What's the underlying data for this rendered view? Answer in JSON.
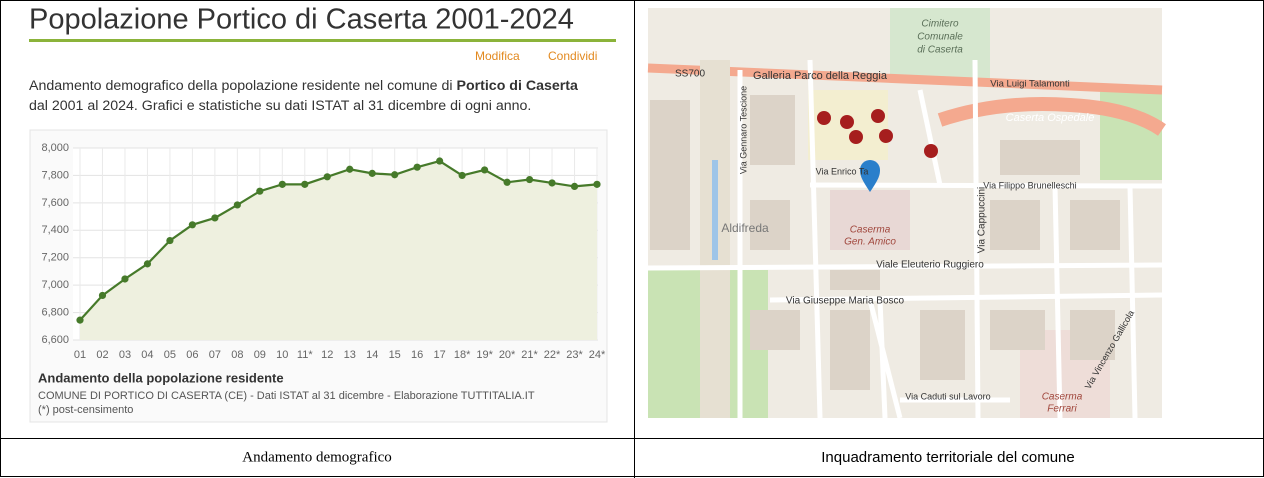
{
  "header": {
    "title": "Popolazione Portico di Caserta 2001-2024",
    "actions": [
      "Modifica",
      "Condividi"
    ]
  },
  "description": {
    "lines": [
      [
        "Andamento demografico della popolazione residente nel comune di ",
        "Portico di Caserta"
      ],
      [
        "dal 2001 al 2024. Grafici e statistiche su dati ISTAT al 31 dicembre di ogni anno."
      ]
    ]
  },
  "chart_data": {
    "type": "line",
    "title": "Andamento della popolazione residente",
    "source": "COMUNE DI PORTICO DI CASERTA (CE) - Dati ISTAT al 31 dicembre - Elaborazione TUTTITALIA.IT",
    "note": "(*) post-censimento",
    "categories": [
      "01",
      "02",
      "03",
      "04",
      "05",
      "06",
      "07",
      "08",
      "09",
      "10",
      "11*",
      "12",
      "13",
      "14",
      "15",
      "16",
      "17",
      "18*",
      "19*",
      "20*",
      "21*",
      "22*",
      "23*",
      "24*"
    ],
    "values": [
      6745,
      6925,
      7045,
      7155,
      7325,
      7440,
      7490,
      7585,
      7685,
      7735,
      7735,
      7790,
      7845,
      7815,
      7805,
      7860,
      7905,
      7800,
      7840,
      7750,
      7770,
      7745,
      7720,
      7735
    ],
    "color": "#467a2a",
    "ylim": [
      6600,
      8000
    ],
    "yticks": [
      {
        "value": 6600,
        "label": "6,600"
      },
      {
        "value": 6800,
        "label": "6,800"
      },
      {
        "value": 7000,
        "label": "7,000"
      },
      {
        "value": 7200,
        "label": "7,200"
      },
      {
        "value": 7400,
        "label": "7,400"
      },
      {
        "value": 7600,
        "label": "7,600"
      },
      {
        "value": 7800,
        "label": "7,800"
      },
      {
        "value": 8000,
        "label": "8,000"
      }
    ],
    "grid": true
  },
  "map": {
    "labels": [
      "SS700",
      "Galleria Parco della Reggia",
      "Via Luigi Talamonti",
      "Cimitero",
      "Comunale",
      "di Caserta",
      "Caserta Ospedale",
      "Via Enrico Ta",
      "Via Filippo Brunelleschi",
      "Aldifreda",
      "Caserma",
      "Gen. Amico",
      "Viale Eleuterio Ruggiero",
      "Via Giuseppe Maria Bosco",
      "Via Cappuccini",
      "Via Gennaro Tescione",
      "Via Caduti sul Lavoro",
      "Caserma",
      "Ferrari",
      "Via Vincenzo Gallicola"
    ]
  },
  "captions": [
    "Andamento demografico",
    "Inquadramento territoriale del comune"
  ]
}
